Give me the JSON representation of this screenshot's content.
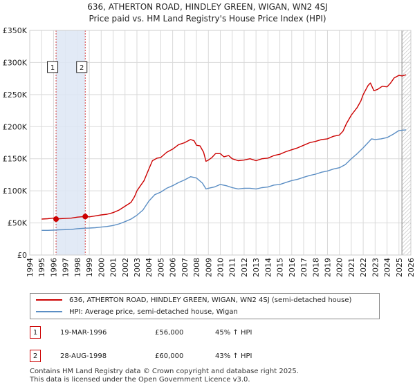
{
  "title_line1": "636, ATHERTON ROAD, HINDLEY GREEN, WIGAN, WN2 4SJ",
  "title_line2": "Price paid vs. HM Land Registry's House Price Index (HPI)",
  "colors": {
    "property": "#cc0000",
    "hpi": "#5b8ec4",
    "shade": "#dde6f5",
    "grid": "#d9d9d9",
    "marker_line": "#cc0000"
  },
  "chart_data": {
    "type": "line",
    "title": "636, ATHERTON ROAD, HINDLEY GREEN, WIGAN, WN2 4SJ",
    "xlim": [
      1994,
      2026
    ],
    "ylim": [
      0,
      350000
    ],
    "y_ticks": [
      {
        "value": 0,
        "label": "£0"
      },
      {
        "value": 50000,
        "label": "£50K"
      },
      {
        "value": 100000,
        "label": "£100K"
      },
      {
        "value": 150000,
        "label": "£150K"
      },
      {
        "value": 200000,
        "label": "£200K"
      },
      {
        "value": 250000,
        "label": "£250K"
      },
      {
        "value": 300000,
        "label": "£300K"
      },
      {
        "value": 350000,
        "label": "£350K"
      }
    ],
    "x_ticks": [
      "1994",
      "1995",
      "1996",
      "1997",
      "1998",
      "1999",
      "2000",
      "2001",
      "2002",
      "2003",
      "2004",
      "2005",
      "2006",
      "2007",
      "2008",
      "2009",
      "2010",
      "2011",
      "2012",
      "2013",
      "2014",
      "2015",
      "2016",
      "2017",
      "2018",
      "2019",
      "2020",
      "2021",
      "2022",
      "2023",
      "2024",
      "2025",
      "2026"
    ],
    "data_start": 1995.0,
    "data_end": 2025.6,
    "shaded_span": [
      1996.21,
      1998.66
    ],
    "hatched_after": 2025.25,
    "grid": true,
    "series": [
      {
        "name": "636, ATHERTON ROAD, HINDLEY GREEN, WIGAN, WN2 4SJ (semi-detached house)",
        "color": "#cc0000",
        "points": [
          [
            1995.0,
            56000
          ],
          [
            1995.5,
            56500
          ],
          [
            1996.0,
            57500
          ],
          [
            1996.21,
            56000
          ],
          [
            1996.5,
            56500
          ],
          [
            1997.0,
            57000
          ],
          [
            1997.5,
            57500
          ],
          [
            1998.0,
            59000
          ],
          [
            1998.66,
            60000
          ],
          [
            1999.0,
            59500
          ],
          [
            1999.5,
            61000
          ],
          [
            2000.0,
            62500
          ],
          [
            2000.5,
            63500
          ],
          [
            2001.0,
            66000
          ],
          [
            2001.5,
            70000
          ],
          [
            2002.0,
            76000
          ],
          [
            2002.5,
            82000
          ],
          [
            2002.8,
            91000
          ],
          [
            2003.0,
            100000
          ],
          [
            2003.3,
            108000
          ],
          [
            2003.6,
            116000
          ],
          [
            2004.0,
            134000
          ],
          [
            2004.3,
            147000
          ],
          [
            2004.7,
            151000
          ],
          [
            2005.0,
            152000
          ],
          [
            2005.5,
            160000
          ],
          [
            2006.0,
            165000
          ],
          [
            2006.5,
            172000
          ],
          [
            2007.0,
            175000
          ],
          [
            2007.5,
            180000
          ],
          [
            2007.8,
            178000
          ],
          [
            2008.0,
            171000
          ],
          [
            2008.3,
            170000
          ],
          [
            2008.6,
            160000
          ],
          [
            2008.8,
            146000
          ],
          [
            2009.0,
            148000
          ],
          [
            2009.3,
            152000
          ],
          [
            2009.6,
            158000
          ],
          [
            2010.0,
            158000
          ],
          [
            2010.3,
            153000
          ],
          [
            2010.7,
            155000
          ],
          [
            2011.0,
            150000
          ],
          [
            2011.5,
            147000
          ],
          [
            2012.0,
            148000
          ],
          [
            2012.5,
            150000
          ],
          [
            2013.0,
            147000
          ],
          [
            2013.5,
            150000
          ],
          [
            2014.0,
            151000
          ],
          [
            2014.5,
            155000
          ],
          [
            2015.0,
            157000
          ],
          [
            2015.5,
            161000
          ],
          [
            2016.0,
            164000
          ],
          [
            2016.5,
            167000
          ],
          [
            2017.0,
            171000
          ],
          [
            2017.5,
            175000
          ],
          [
            2018.0,
            177000
          ],
          [
            2018.5,
            180000
          ],
          [
            2019.0,
            181000
          ],
          [
            2019.5,
            185000
          ],
          [
            2020.0,
            187000
          ],
          [
            2020.3,
            193000
          ],
          [
            2020.6,
            205000
          ],
          [
            2021.0,
            218000
          ],
          [
            2021.5,
            230000
          ],
          [
            2021.8,
            240000
          ],
          [
            2022.0,
            250000
          ],
          [
            2022.4,
            264000
          ],
          [
            2022.6,
            268000
          ],
          [
            2022.9,
            256000
          ],
          [
            2023.2,
            258000
          ],
          [
            2023.6,
            263000
          ],
          [
            2024.0,
            262000
          ],
          [
            2024.3,
            268000
          ],
          [
            2024.6,
            276000
          ],
          [
            2025.0,
            280000
          ],
          [
            2025.3,
            279000
          ],
          [
            2025.6,
            281000
          ]
        ]
      },
      {
        "name": "HPI: Average price, semi-detached house, Wigan",
        "color": "#5b8ec4",
        "points": [
          [
            1995.0,
            38500
          ],
          [
            1995.5,
            38500
          ],
          [
            1996.0,
            38800
          ],
          [
            1996.5,
            39200
          ],
          [
            1997.0,
            39500
          ],
          [
            1997.5,
            40000
          ],
          [
            1998.0,
            41000
          ],
          [
            1998.66,
            41800
          ],
          [
            1999.0,
            42000
          ],
          [
            1999.5,
            42500
          ],
          [
            2000.0,
            43500
          ],
          [
            2000.5,
            44500
          ],
          [
            2001.0,
            46000
          ],
          [
            2001.5,
            48500
          ],
          [
            2002.0,
            52000
          ],
          [
            2002.5,
            56000
          ],
          [
            2003.0,
            62000
          ],
          [
            2003.5,
            70000
          ],
          [
            2004.0,
            84000
          ],
          [
            2004.5,
            94000
          ],
          [
            2005.0,
            98000
          ],
          [
            2005.5,
            104000
          ],
          [
            2006.0,
            108000
          ],
          [
            2006.5,
            113000
          ],
          [
            2007.0,
            117000
          ],
          [
            2007.5,
            122000
          ],
          [
            2008.0,
            120000
          ],
          [
            2008.5,
            112000
          ],
          [
            2008.8,
            103000
          ],
          [
            2009.0,
            104000
          ],
          [
            2009.5,
            106000
          ],
          [
            2010.0,
            110000
          ],
          [
            2010.5,
            108000
          ],
          [
            2011.0,
            105000
          ],
          [
            2011.5,
            103000
          ],
          [
            2012.0,
            104000
          ],
          [
            2012.5,
            104000
          ],
          [
            2013.0,
            103000
          ],
          [
            2013.5,
            105000
          ],
          [
            2014.0,
            106000
          ],
          [
            2014.5,
            109000
          ],
          [
            2015.0,
            110000
          ],
          [
            2015.5,
            113000
          ],
          [
            2016.0,
            116000
          ],
          [
            2016.5,
            118000
          ],
          [
            2017.0,
            121000
          ],
          [
            2017.5,
            124000
          ],
          [
            2018.0,
            126000
          ],
          [
            2018.5,
            129000
          ],
          [
            2019.0,
            131000
          ],
          [
            2019.5,
            134000
          ],
          [
            2020.0,
            136000
          ],
          [
            2020.5,
            141000
          ],
          [
            2021.0,
            150000
          ],
          [
            2021.5,
            158000
          ],
          [
            2022.0,
            167000
          ],
          [
            2022.4,
            175000
          ],
          [
            2022.7,
            181000
          ],
          [
            2023.0,
            180000
          ],
          [
            2023.5,
            181000
          ],
          [
            2024.0,
            183000
          ],
          [
            2024.5,
            188000
          ],
          [
            2025.0,
            194000
          ],
          [
            2025.6,
            195000
          ]
        ]
      }
    ],
    "markers": [
      {
        "label": "1",
        "x": 1996.21,
        "y": 56000
      },
      {
        "label": "2",
        "x": 1998.66,
        "y": 60000
      }
    ]
  },
  "legend": {
    "property": "636, ATHERTON ROAD, HINDLEY GREEN, WIGAN, WN2 4SJ (semi-detached house)",
    "hpi": "HPI: Average price, semi-detached house, Wigan"
  },
  "transactions": [
    {
      "num": "1",
      "date": "19-MAR-1996",
      "price": "£56,000",
      "hpi": "45% ↑ HPI"
    },
    {
      "num": "2",
      "date": "28-AUG-1998",
      "price": "£60,000",
      "hpi": "43% ↑ HPI"
    }
  ],
  "footer_line1": "Contains HM Land Registry data © Crown copyright and database right 2025.",
  "footer_line2": "This data is licensed under the Open Government Licence v3.0."
}
